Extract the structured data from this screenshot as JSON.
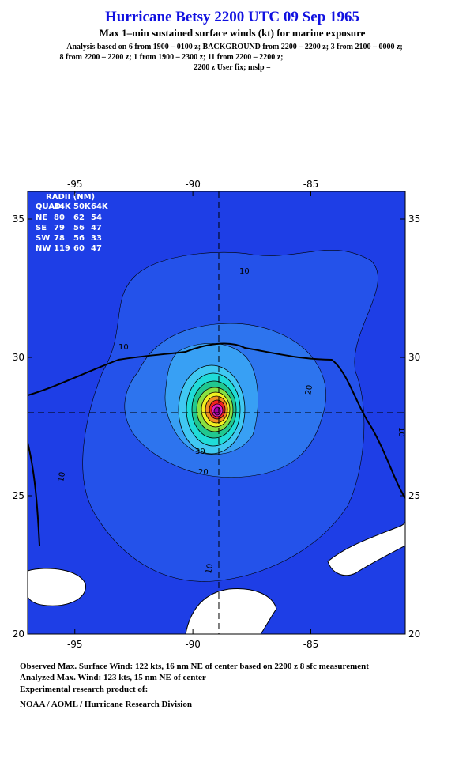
{
  "header": {
    "title": "Hurricane Betsy 2200 UTC 09 Sep 1965",
    "subtitle": "Max 1–min sustained surface winds (kt) for marine exposure",
    "analysis": [
      "Analysis based on  6 from 1900 – 0100 z;  BACKGROUND from 2200 – 2200 z;  3 from 2100 – 0000 z;",
      "8 from 2200 – 2200 z;  1 from 1900 – 2300 z;  11 from 2200 – 2200 z;",
      "2200 z User fix; mslp ="
    ]
  },
  "map": {
    "xlim": [
      -97,
      -81
    ],
    "ylim": [
      20,
      36
    ],
    "xticks": [
      -95,
      -90,
      -85
    ],
    "yticks": [
      20,
      25,
      30,
      35
    ],
    "center": [
      -88.9,
      28.0
    ],
    "radii_table": {
      "title": "RADII (NM)",
      "columns": [
        "QUAD",
        "34K",
        "50K",
        "64K"
      ],
      "rows": [
        [
          "NE",
          80,
          62,
          54
        ],
        [
          "SE",
          79,
          56,
          47
        ],
        [
          "SW",
          78,
          56,
          33
        ],
        [
          "NW",
          119,
          60,
          47
        ]
      ]
    },
    "contour_labels": [
      10,
      10,
      10,
      10,
      10,
      20,
      20,
      30
    ]
  },
  "footer": {
    "observed": "Observed Max. Surface Wind: 122 kts, 16 nm NE of center based on 2200 z 8 sfc measurement",
    "analyzed": "Analyzed Max. Wind: 123 kts, 15 nm NE of center",
    "product": "Experimental research product of:",
    "org": "NOAA / AOML / Hurricane Research Division"
  }
}
